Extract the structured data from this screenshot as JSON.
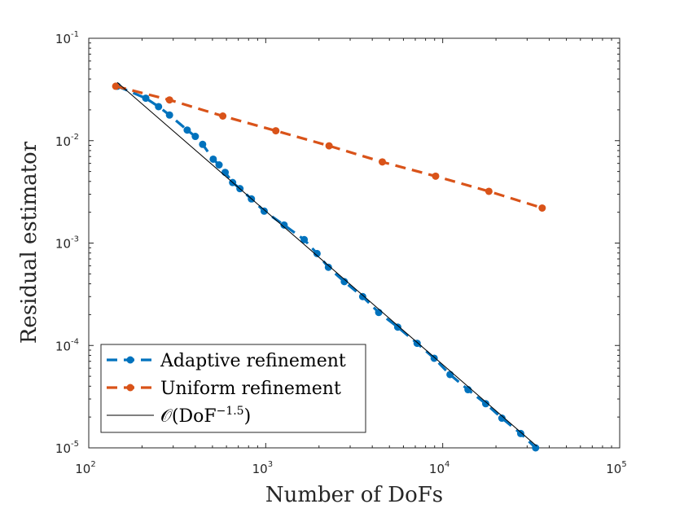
{
  "chart_data": {
    "type": "line",
    "xscale": "log",
    "yscale": "log",
    "xlabel": "Number of DoFs",
    "ylabel": "Residual estimator",
    "xlim": [
      100,
      100000
    ],
    "ylim": [
      1e-05,
      0.1
    ],
    "x_ticks": [
      {
        "base": "10",
        "exp": "2",
        "value": 100
      },
      {
        "base": "10",
        "exp": "3",
        "value": 1000
      },
      {
        "base": "10",
        "exp": "4",
        "value": 10000
      },
      {
        "base": "10",
        "exp": "5",
        "value": 100000
      }
    ],
    "y_ticks": [
      {
        "base": "10",
        "exp": "-5",
        "value": 1e-05
      },
      {
        "base": "10",
        "exp": "-4",
        "value": 0.0001
      },
      {
        "base": "10",
        "exp": "-3",
        "value": 0.001
      },
      {
        "base": "10",
        "exp": "-2",
        "value": 0.01
      },
      {
        "base": "10",
        "exp": "-1",
        "value": 0.1
      }
    ],
    "grid": false,
    "legend_position": "bottom-left",
    "series": [
      {
        "name": "Adaptive refinement",
        "color": "#0072BD",
        "style": "dashed-with-markers",
        "points": [
          [
            145,
            0.034
          ],
          [
            210,
            0.026
          ],
          [
            248,
            0.0215
          ],
          [
            286,
            0.0178
          ],
          [
            360,
            0.0127
          ],
          [
            400,
            0.011
          ],
          [
            440,
            0.0092
          ],
          [
            505,
            0.0066
          ],
          [
            545,
            0.0058
          ],
          [
            590,
            0.0049
          ],
          [
            650,
            0.0039
          ],
          [
            715,
            0.0034
          ],
          [
            830,
            0.0027
          ],
          [
            980,
            0.00205
          ],
          [
            1270,
            0.0015
          ],
          [
            1650,
            0.00108
          ],
          [
            1950,
            0.00079
          ],
          [
            2260,
            0.00058
          ],
          [
            2780,
            0.00042
          ],
          [
            3530,
            0.0003
          ],
          [
            4350,
            0.00021
          ],
          [
            5570,
            0.000151
          ],
          [
            7170,
            0.000105
          ],
          [
            8950,
            7.5e-05
          ],
          [
            11000,
            5.2e-05
          ],
          [
            13900,
            3.7e-05
          ],
          [
            17500,
            2.7e-05
          ],
          [
            21600,
            1.95e-05
          ],
          [
            27600,
            1.38e-05
          ],
          [
            33500,
            1e-05
          ]
        ]
      },
      {
        "name": "Uniform refinement",
        "color": "#D95319",
        "style": "dashed-with-markers",
        "points": [
          [
            142,
            0.034
          ],
          [
            286,
            0.025
          ],
          [
            572,
            0.0174
          ],
          [
            1140,
            0.0125
          ],
          [
            2280,
            0.0089
          ],
          [
            4560,
            0.0062
          ],
          [
            9120,
            0.0045
          ],
          [
            18240,
            0.0032
          ],
          [
            36480,
            0.0022
          ]
        ]
      },
      {
        "name": "O(DoF^-1.5)",
        "color": "#000000",
        "style": "solid",
        "points": [
          [
            145,
            0.037
          ],
          [
            34000,
            1.04e-05
          ]
        ]
      }
    ],
    "legend": [
      {
        "text": "Adaptive refinement",
        "series": 0
      },
      {
        "text": "Uniform refinement",
        "series": 1
      },
      {
        "text_prefix": "𝒪(DoF",
        "text_sup": "−1.5",
        "text_suffix": ")",
        "series": 2
      }
    ]
  }
}
